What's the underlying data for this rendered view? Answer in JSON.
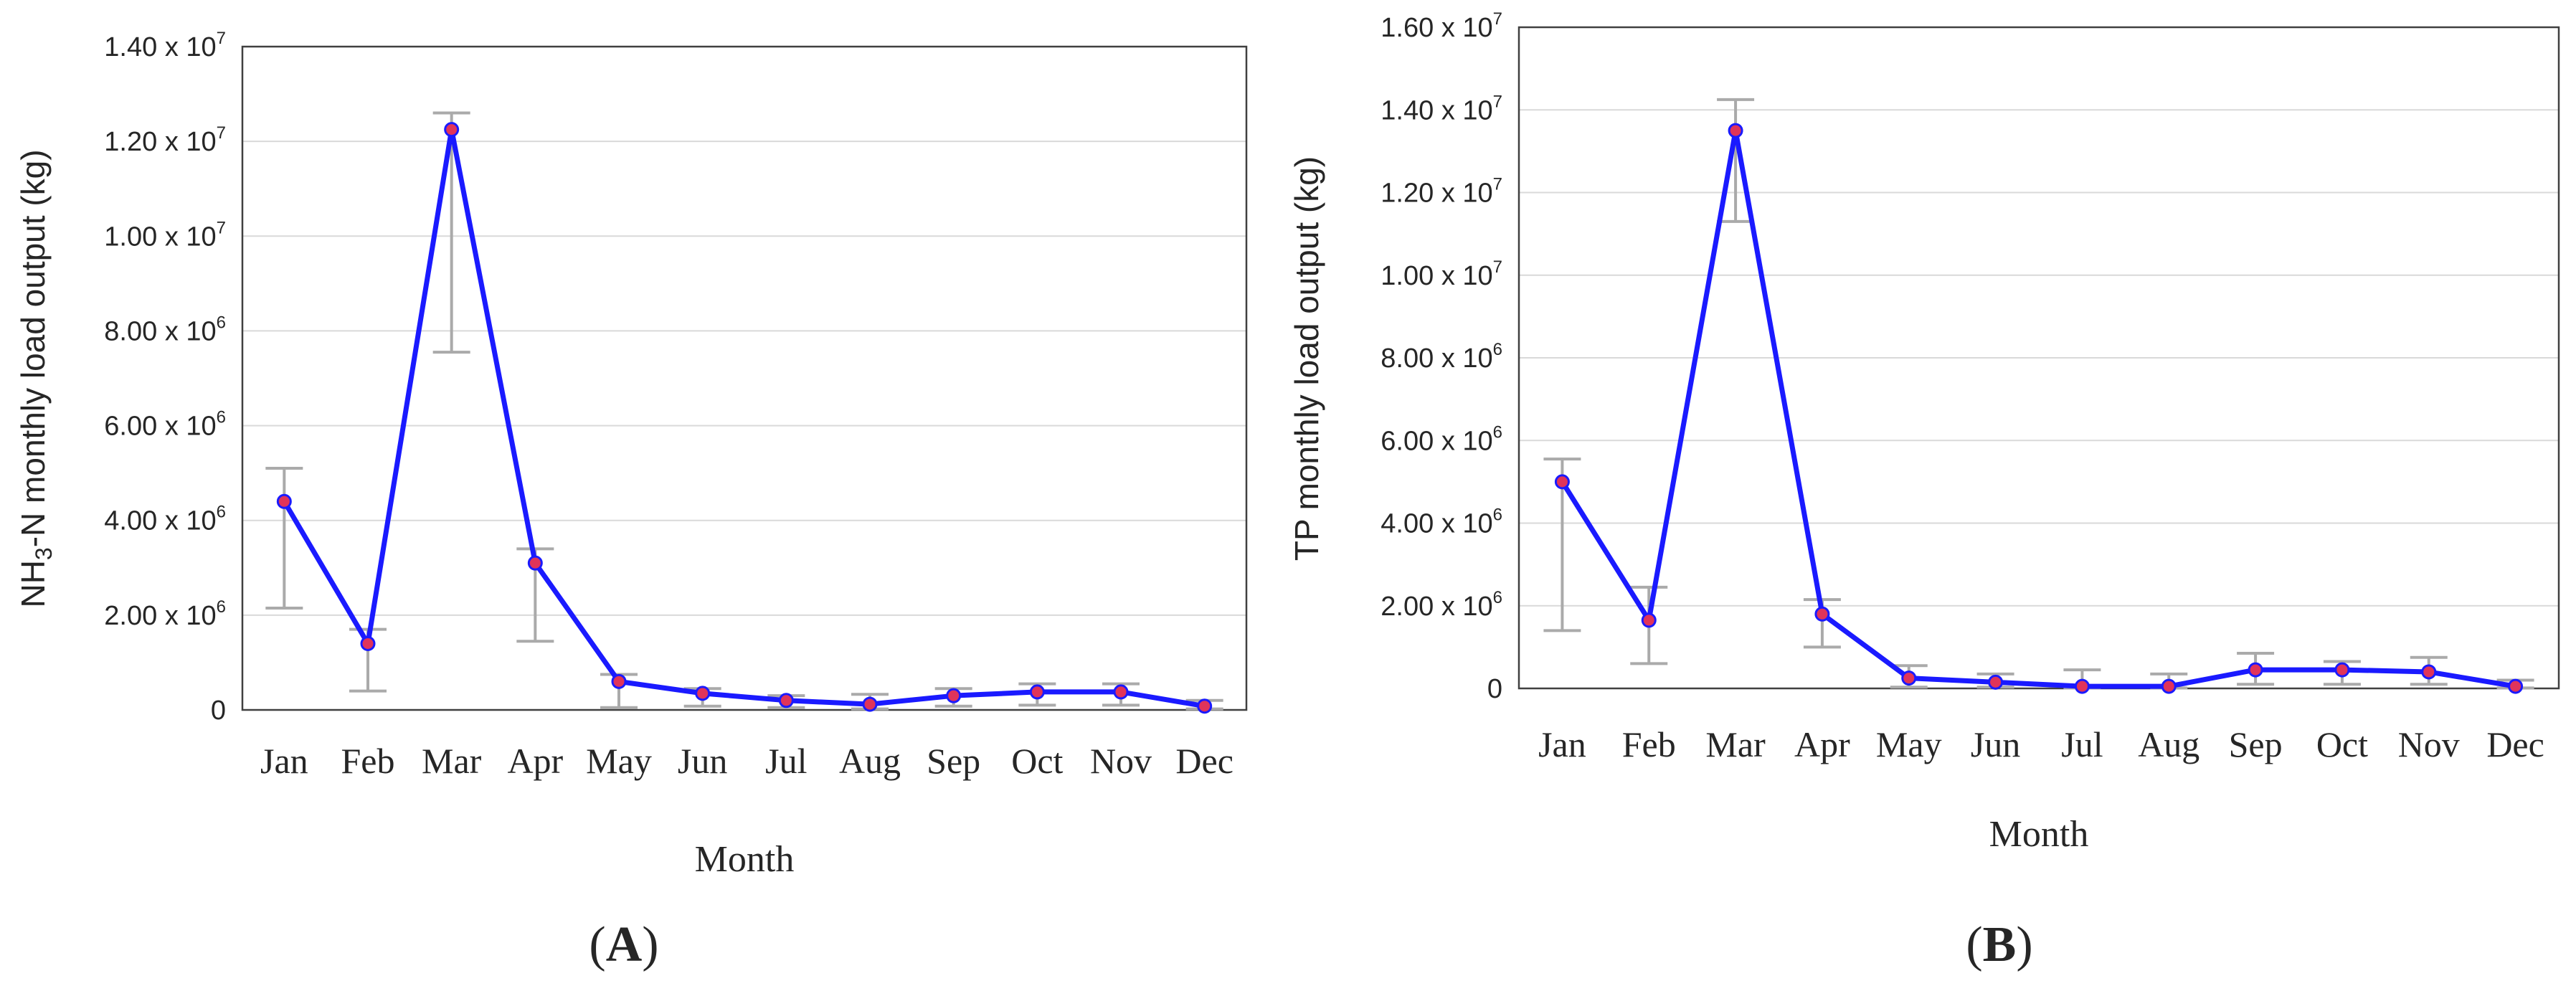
{
  "chart_data": [
    {
      "type": "line",
      "panel_label": "A",
      "xlabel": "Month",
      "ylabel": {
        "prefix": "NH",
        "subscript": "3",
        "suffix": "-N monthly load output (kg)"
      },
      "categories": [
        "Jan",
        "Feb",
        "Mar",
        "Apr",
        "May",
        "Jun",
        "Jul",
        "Aug",
        "Sep",
        "Oct",
        "Nov",
        "Dec"
      ],
      "y_ticks": [
        {
          "value": 0,
          "mantissa": "0",
          "exponent": ""
        },
        {
          "value": 2000000,
          "mantissa": "2.00 x 10",
          "exponent": "6"
        },
        {
          "value": 4000000,
          "mantissa": "4.00 x 10",
          "exponent": "6"
        },
        {
          "value": 6000000,
          "mantissa": "6.00 x 10",
          "exponent": "6"
        },
        {
          "value": 8000000,
          "mantissa": "8.00 x 10",
          "exponent": "6"
        },
        {
          "value": 10000000,
          "mantissa": "1.00 x 10",
          "exponent": "7"
        },
        {
          "value": 12000000,
          "mantissa": "1.20 x 10",
          "exponent": "7"
        },
        {
          "value": 14000000,
          "mantissa": "1.40 x 10",
          "exponent": "7"
        }
      ],
      "ylim": [
        0,
        14000000
      ],
      "grid": "horizontal",
      "series": [
        {
          "values": [
            4400000,
            1400000,
            12250000,
            3100000,
            600000,
            350000,
            200000,
            120000,
            300000,
            380000,
            380000,
            80000
          ],
          "error_low": [
            2150000,
            400000,
            7550000,
            1450000,
            50000,
            80000,
            50000,
            20000,
            80000,
            100000,
            100000,
            20000
          ],
          "error_high": [
            5100000,
            1700000,
            12600000,
            3400000,
            750000,
            450000,
            300000,
            330000,
            450000,
            550000,
            550000,
            200000
          ],
          "line_color": "#1a1aff",
          "marker_color": "#e0345a",
          "error_color": "#aaaaaa"
        }
      ]
    },
    {
      "type": "line",
      "panel_label": "B",
      "xlabel": "Month",
      "ylabel": {
        "prefix": "TP monthly load output (kg)",
        "subscript": "",
        "suffix": ""
      },
      "categories": [
        "Jan",
        "Feb",
        "Mar",
        "Apr",
        "May",
        "Jun",
        "Jul",
        "Aug",
        "Sep",
        "Oct",
        "Nov",
        "Dec"
      ],
      "y_ticks": [
        {
          "value": 0,
          "mantissa": "0",
          "exponent": ""
        },
        {
          "value": 2000000,
          "mantissa": "2.00 x 10",
          "exponent": "6"
        },
        {
          "value": 4000000,
          "mantissa": "4.00 x 10",
          "exponent": "6"
        },
        {
          "value": 6000000,
          "mantissa": "6.00 x 10",
          "exponent": "6"
        },
        {
          "value": 8000000,
          "mantissa": "8.00 x 10",
          "exponent": "6"
        },
        {
          "value": 10000000,
          "mantissa": "1.00 x 10",
          "exponent": "7"
        },
        {
          "value": 12000000,
          "mantissa": "1.20 x 10",
          "exponent": "7"
        },
        {
          "value": 14000000,
          "mantissa": "1.40 x 10",
          "exponent": "7"
        },
        {
          "value": 16000000,
          "mantissa": "1.60 x 10",
          "exponent": "7"
        }
      ],
      "ylim": [
        0,
        16000000
      ],
      "grid": "horizontal",
      "series": [
        {
          "values": [
            5000000,
            1650000,
            13500000,
            1800000,
            250000,
            150000,
            50000,
            50000,
            450000,
            450000,
            400000,
            50000
          ],
          "error_low": [
            1400000,
            600000,
            11300000,
            1000000,
            30000,
            30000,
            10000,
            10000,
            100000,
            100000,
            100000,
            10000
          ],
          "error_high": [
            5550000,
            2450000,
            14250000,
            2150000,
            550000,
            350000,
            450000,
            350000,
            850000,
            650000,
            750000,
            200000
          ],
          "line_color": "#1a1aff",
          "marker_color": "#e0345a",
          "error_color": "#aaaaaa"
        }
      ]
    }
  ]
}
